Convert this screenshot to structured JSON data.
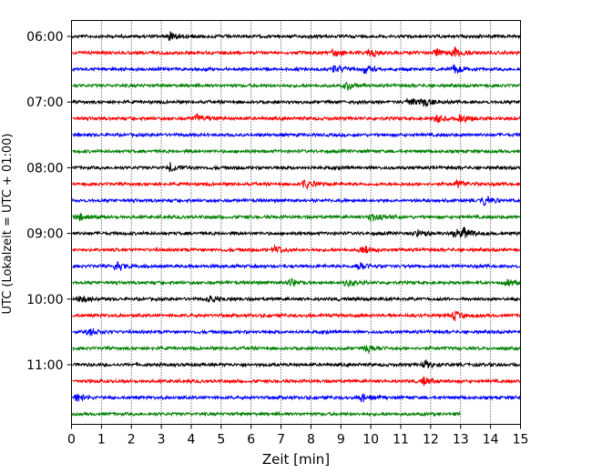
{
  "chart_data": {
    "type": "line",
    "subtype": "helicorder",
    "title": "",
    "xlabel": "Zeit  [min]",
    "ylabel": "UTC (Lokalzeit = UTC + 01:00)",
    "xlim": [
      0,
      15
    ],
    "x_ticks": [
      0,
      1,
      2,
      3,
      4,
      5,
      6,
      7,
      8,
      9,
      10,
      11,
      12,
      13,
      14,
      15
    ],
    "grid": "vertical dotted",
    "y_tick_labels": [
      "06:00",
      "07:00",
      "08:00",
      "09:00",
      "10:00",
      "11:00"
    ],
    "trace_start": "06:00",
    "trace_minutes": 15,
    "trace_colors": [
      "#000000",
      "#ff0000",
      "#0000ff",
      "#008000"
    ],
    "traces": [
      {
        "start": "06:00",
        "end_min": 15,
        "events": [
          3.3
        ]
      },
      {
        "start": "06:15",
        "end_min": 15,
        "events": [
          8.8,
          10.0,
          12.2,
          12.8
        ]
      },
      {
        "start": "06:30",
        "end_min": 15,
        "events": [
          8.8,
          9.8,
          12.8
        ]
      },
      {
        "start": "06:45",
        "end_min": 15,
        "events": [
          9.2
        ]
      },
      {
        "start": "07:00",
        "end_min": 15,
        "events": [
          11.3,
          11.8
        ]
      },
      {
        "start": "07:15",
        "end_min": 15,
        "events": [
          4.2,
          12.2,
          13.0
        ]
      },
      {
        "start": "07:30",
        "end_min": 15,
        "events": []
      },
      {
        "start": "07:45",
        "end_min": 15,
        "events": []
      },
      {
        "start": "08:00",
        "end_min": 15,
        "events": [
          3.3
        ]
      },
      {
        "start": "08:15",
        "end_min": 15,
        "events": [
          7.8,
          12.9
        ]
      },
      {
        "start": "08:30",
        "end_min": 15,
        "events": [
          13.8
        ]
      },
      {
        "start": "08:45",
        "end_min": 15,
        "events": [
          0.2,
          10.0
        ]
      },
      {
        "start": "09:00",
        "end_min": 15,
        "events": [
          11.5,
          12.8,
          13.1
        ]
      },
      {
        "start": "09:15",
        "end_min": 15,
        "events": [
          6.8,
          9.7
        ]
      },
      {
        "start": "09:30",
        "end_min": 15,
        "events": [
          1.5,
          9.6
        ]
      },
      {
        "start": "09:45",
        "end_min": 15,
        "events": [
          7.3,
          9.2,
          14.5
        ]
      },
      {
        "start": "10:00",
        "end_min": 15,
        "events": [
          0.3,
          4.6
        ]
      },
      {
        "start": "10:15",
        "end_min": 15,
        "events": [
          12.8
        ]
      },
      {
        "start": "10:30",
        "end_min": 15,
        "events": [
          0.6
        ]
      },
      {
        "start": "10:45",
        "end_min": 15,
        "events": [
          9.9
        ]
      },
      {
        "start": "11:00",
        "end_min": 15,
        "events": [
          11.8
        ]
      },
      {
        "start": "11:15",
        "end_min": 15,
        "events": [
          11.8
        ]
      },
      {
        "start": "11:30",
        "end_min": 15,
        "events": [
          0.2,
          9.7
        ]
      },
      {
        "start": "11:45",
        "end_min": 13,
        "events": []
      }
    ]
  }
}
